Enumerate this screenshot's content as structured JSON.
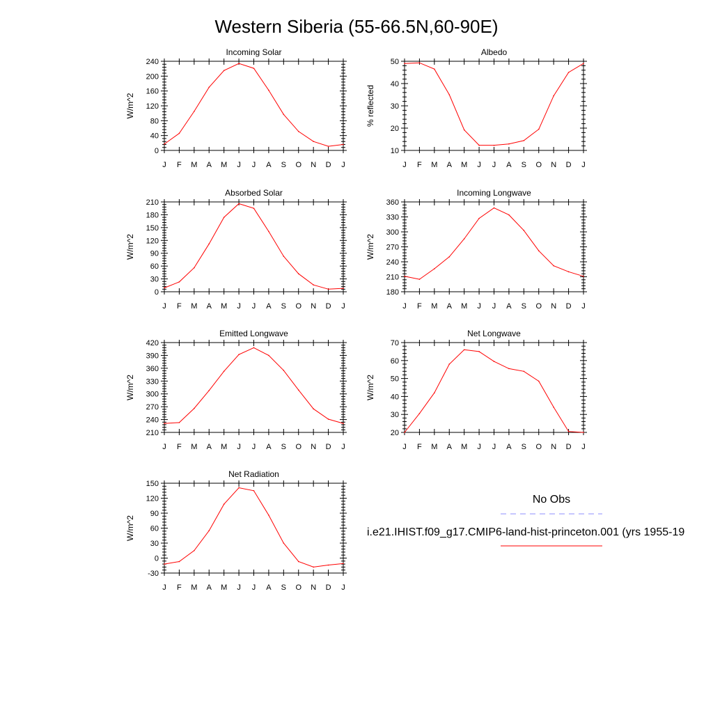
{
  "page": {
    "title": "Western Siberia (55-66.5N,60-90E)"
  },
  "legend": {
    "obs_label": "No Obs",
    "obs_color": "#8c8cff",
    "model_label": "i.e21.IHIST.f09_g17.CMIP6-land-hist-princeton.001 (yrs 1955-19",
    "model_color": "#ff0000"
  },
  "chart_data": [
    {
      "type": "line",
      "title": "Incoming Solar",
      "ylabel": "W/m^2",
      "ylim": [
        0,
        240
      ],
      "yticks": [
        0,
        40,
        80,
        120,
        160,
        200,
        240
      ],
      "categories": [
        "J",
        "F",
        "M",
        "A",
        "M",
        "J",
        "J",
        "A",
        "S",
        "O",
        "N",
        "D",
        "J"
      ],
      "values": [
        17,
        46,
        105,
        170,
        215,
        234,
        221,
        162,
        97,
        51,
        24,
        11,
        16
      ],
      "color": "#ff0000"
    },
    {
      "type": "line",
      "title": "Albedo",
      "ylabel": "% reflected",
      "ylim": [
        10,
        50
      ],
      "yticks": [
        10,
        20,
        30,
        40,
        50
      ],
      "categories": [
        "J",
        "F",
        "M",
        "A",
        "M",
        "J",
        "J",
        "A",
        "S",
        "O",
        "N",
        "D",
        "J"
      ],
      "values": [
        49,
        49.3,
        46.5,
        35,
        19.2,
        12.3,
        12.3,
        12.9,
        14.4,
        19.5,
        34.5,
        45,
        49
      ],
      "color": "#ff0000"
    },
    {
      "type": "line",
      "title": "Absorbed Solar",
      "ylabel": "W/m^2",
      "ylim": [
        0,
        210
      ],
      "yticks": [
        0,
        30,
        60,
        90,
        120,
        150,
        180,
        210
      ],
      "categories": [
        "J",
        "F",
        "M",
        "A",
        "M",
        "J",
        "J",
        "A",
        "S",
        "O",
        "N",
        "D",
        "J"
      ],
      "values": [
        9,
        23,
        56,
        112,
        174,
        206,
        195,
        141,
        83,
        42,
        16,
        6,
        8
      ],
      "color": "#ff0000"
    },
    {
      "type": "line",
      "title": "Incoming Longwave",
      "ylabel": "W/m^2",
      "ylim": [
        180,
        360
      ],
      "yticks": [
        180,
        210,
        240,
        270,
        300,
        330,
        360
      ],
      "categories": [
        "J",
        "F",
        "M",
        "A",
        "M",
        "J",
        "J",
        "A",
        "S",
        "O",
        "N",
        "D",
        "J"
      ],
      "values": [
        211,
        205,
        226,
        250,
        286,
        327,
        348,
        334,
        303,
        262,
        232,
        220,
        211
      ],
      "color": "#ff0000"
    },
    {
      "type": "line",
      "title": "Emitted Longwave",
      "ylabel": "W/m^2",
      "ylim": [
        210,
        420
      ],
      "yticks": [
        210,
        240,
        270,
        300,
        330,
        360,
        390,
        420
      ],
      "categories": [
        "J",
        "F",
        "M",
        "A",
        "M",
        "J",
        "J",
        "A",
        "S",
        "O",
        "N",
        "D",
        "J"
      ],
      "values": [
        231,
        233,
        266,
        308,
        353,
        392,
        408,
        390,
        355,
        309,
        265,
        241,
        231
      ],
      "color": "#ff0000"
    },
    {
      "type": "line",
      "title": "Net Longwave",
      "ylabel": "W/m^2",
      "ylim": [
        20,
        70
      ],
      "yticks": [
        20,
        30,
        40,
        50,
        60,
        70
      ],
      "categories": [
        "J",
        "F",
        "M",
        "A",
        "M",
        "J",
        "J",
        "A",
        "S",
        "O",
        "N",
        "D",
        "J"
      ],
      "values": [
        20,
        30.5,
        42,
        58,
        66,
        65,
        59.5,
        55.5,
        54,
        48.5,
        34,
        20.5,
        20
      ],
      "color": "#ff0000"
    },
    {
      "type": "line",
      "title": "Net Radiation",
      "ylabel": "W/m^2",
      "ylim": [
        -30,
        150
      ],
      "yticks": [
        -30,
        0,
        30,
        60,
        90,
        120,
        150
      ],
      "categories": [
        "J",
        "F",
        "M",
        "A",
        "M",
        "J",
        "J",
        "A",
        "S",
        "O",
        "N",
        "D",
        "J"
      ],
      "values": [
        -12,
        -7,
        15,
        55,
        108,
        141,
        135,
        86,
        30,
        -7,
        -18,
        -14,
        -11
      ],
      "color": "#ff0000"
    }
  ]
}
